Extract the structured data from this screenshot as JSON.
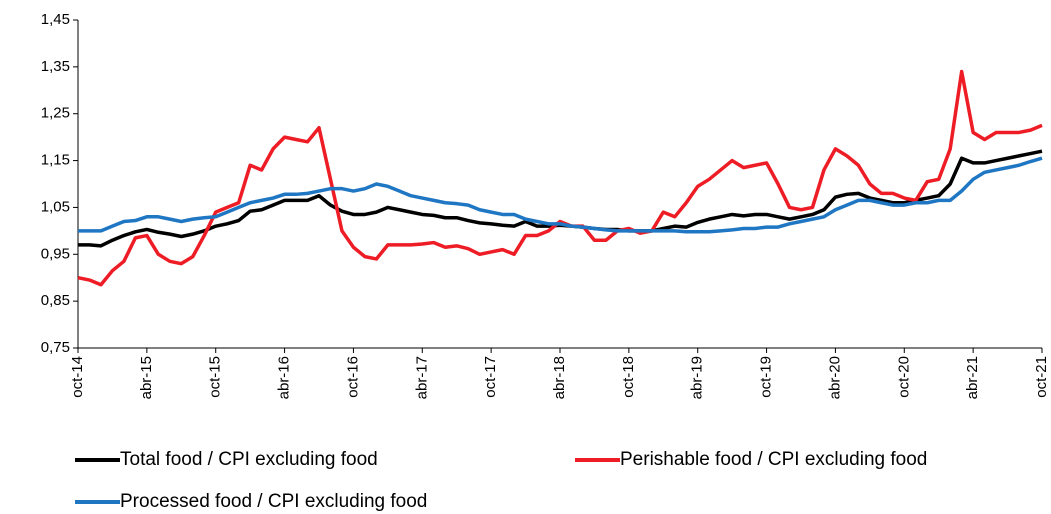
{
  "chart_data": {
    "type": "line",
    "categories": [
      "oct-14",
      null,
      null,
      null,
      null,
      null,
      "abr-15",
      null,
      null,
      null,
      null,
      null,
      "oct-15",
      null,
      null,
      null,
      null,
      null,
      "abr-16",
      null,
      null,
      null,
      null,
      null,
      "oct-16",
      null,
      null,
      null,
      null,
      null,
      "abr-17",
      null,
      null,
      null,
      null,
      null,
      "oct-17",
      null,
      null,
      null,
      null,
      null,
      "abr-18",
      null,
      null,
      null,
      null,
      null,
      "oct-18",
      null,
      null,
      null,
      null,
      null,
      "abr-19",
      null,
      null,
      null,
      null,
      null,
      "oct-19",
      null,
      null,
      null,
      null,
      null,
      "abr-20",
      null,
      null,
      null,
      null,
      null,
      "oct-20",
      null,
      null,
      null,
      null,
      null,
      "abr-21",
      null,
      null,
      null,
      null,
      null,
      "oct-21"
    ],
    "series": [
      {
        "name": "Total food / CPI excluding food",
        "color": "#000000",
        "values": [
          0.97,
          0.97,
          0.968,
          0.98,
          0.99,
          0.998,
          1.003,
          0.997,
          0.993,
          0.988,
          0.993,
          1.0,
          1.01,
          1.015,
          1.022,
          1.042,
          1.045,
          1.055,
          1.065,
          1.065,
          1.065,
          1.075,
          1.055,
          1.042,
          1.035,
          1.035,
          1.04,
          1.05,
          1.045,
          1.04,
          1.035,
          1.033,
          1.028,
          1.028,
          1.022,
          1.017,
          1.015,
          1.012,
          1.01,
          1.02,
          1.01,
          1.01,
          1.012,
          1.01,
          1.008,
          1.005,
          1.003,
          1.003,
          1.0,
          1.0,
          1.0,
          1.005,
          1.01,
          1.008,
          1.018,
          1.025,
          1.03,
          1.035,
          1.032,
          1.035,
          1.035,
          1.03,
          1.025,
          1.03,
          1.035,
          1.045,
          1.072,
          1.078,
          1.08,
          1.07,
          1.065,
          1.06,
          1.06,
          1.065,
          1.07,
          1.075,
          1.1,
          1.155,
          1.145,
          1.145,
          1.15,
          1.155,
          1.16,
          1.165,
          1.17
        ]
      },
      {
        "name": "Perishable food / CPI excluding food",
        "color": "#ee1c25",
        "values": [
          0.9,
          0.895,
          0.885,
          0.915,
          0.935,
          0.985,
          0.99,
          0.95,
          0.935,
          0.93,
          0.945,
          0.99,
          1.04,
          1.05,
          1.06,
          1.14,
          1.13,
          1.175,
          1.2,
          1.195,
          1.19,
          1.22,
          1.11,
          1.0,
          0.965,
          0.945,
          0.94,
          0.97,
          0.97,
          0.97,
          0.972,
          0.975,
          0.965,
          0.968,
          0.962,
          0.95,
          0.955,
          0.96,
          0.95,
          0.99,
          0.99,
          1.0,
          1.02,
          1.01,
          1.01,
          0.98,
          0.98,
          1.0,
          1.005,
          0.995,
          1.0,
          1.04,
          1.03,
          1.06,
          1.095,
          1.11,
          1.13,
          1.15,
          1.135,
          1.14,
          1.145,
          1.1,
          1.05,
          1.045,
          1.05,
          1.13,
          1.175,
          1.16,
          1.14,
          1.1,
          1.08,
          1.08,
          1.07,
          1.065,
          1.105,
          1.11,
          1.175,
          1.34,
          1.21,
          1.195,
          1.21,
          1.21,
          1.21,
          1.215,
          1.225
        ]
      },
      {
        "name": "Processed food / CPI excluding food",
        "color": "#1f77c4",
        "values": [
          1.0,
          1.0,
          1.0,
          1.01,
          1.02,
          1.022,
          1.03,
          1.03,
          1.025,
          1.02,
          1.025,
          1.028,
          1.03,
          1.04,
          1.05,
          1.06,
          1.065,
          1.07,
          1.078,
          1.078,
          1.08,
          1.085,
          1.09,
          1.09,
          1.085,
          1.09,
          1.1,
          1.095,
          1.085,
          1.075,
          1.07,
          1.065,
          1.06,
          1.058,
          1.055,
          1.045,
          1.04,
          1.035,
          1.035,
          1.025,
          1.02,
          1.015,
          1.015,
          1.01,
          1.008,
          1.005,
          1.002,
          1.0,
          1.0,
          1.0,
          1.0,
          1.0,
          1.0,
          0.998,
          0.998,
          0.998,
          1.0,
          1.002,
          1.005,
          1.005,
          1.008,
          1.008,
          1.015,
          1.02,
          1.025,
          1.03,
          1.045,
          1.055,
          1.065,
          1.065,
          1.06,
          1.055,
          1.055,
          1.06,
          1.06,
          1.065,
          1.065,
          1.085,
          1.11,
          1.125,
          1.13,
          1.135,
          1.14,
          1.148,
          1.155
        ]
      }
    ],
    "ylim": [
      0.75,
      1.45
    ],
    "yticks": [
      {
        "value": 0.75,
        "label": "0,75"
      },
      {
        "value": 0.85,
        "label": "0,85"
      },
      {
        "value": 0.95,
        "label": "0,95"
      },
      {
        "value": 1.05,
        "label": "1,05"
      },
      {
        "value": 1.15,
        "label": "1,15"
      },
      {
        "value": 1.25,
        "label": "1,25"
      },
      {
        "value": 1.35,
        "label": "1,35"
      },
      {
        "value": 1.45,
        "label": "1,45"
      }
    ],
    "grid": false,
    "legend": "bottom"
  }
}
